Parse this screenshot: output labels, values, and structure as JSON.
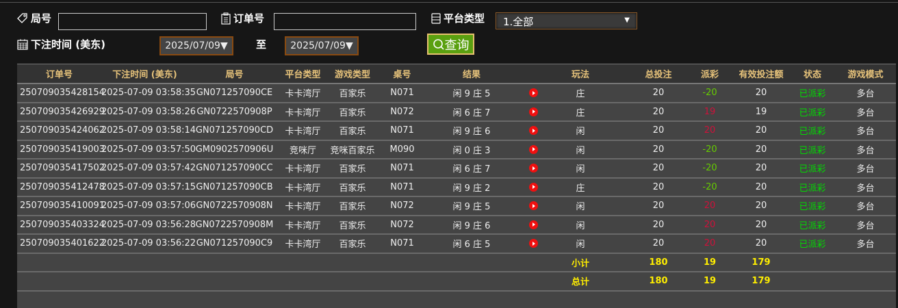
{
  "filters": {
    "round_label": "局号",
    "round_value": "",
    "order_label": "订单号",
    "order_value": "",
    "platform_label": "平台类型",
    "platform_value": "1.全部",
    "time_label": "下注时间 (美东)",
    "date_from": "2025/07/09▼",
    "to_label": "至",
    "date_to": "2025/07/09▼",
    "query_label": "查询"
  },
  "table": {
    "headers": [
      "订单号",
      "下注时间 (美东)",
      "局号",
      "平台类型",
      "游戏类型",
      "桌号",
      "结果",
      "",
      "玩法",
      "总投注",
      "派彩",
      "有效投注额",
      "状态",
      "游戏模式"
    ],
    "rows": [
      [
        "250709035428154",
        "2025-07-09 03:58:35",
        "GN071257090CE",
        "卡卡湾厅",
        "百家乐",
        "N071",
        "闲 9 庄 5",
        "",
        "庄",
        "20",
        "-20",
        "20",
        "已派彩",
        "多台"
      ],
      [
        "250709035426929",
        "2025-07-09 03:58:26",
        "GN0722570908P",
        "卡卡湾厅",
        "百家乐",
        "N072",
        "闲 6 庄 7",
        "",
        "庄",
        "20",
        "19",
        "19",
        "已派彩",
        "多台"
      ],
      [
        "250709035424062",
        "2025-07-09 03:58:14",
        "GN071257090CD",
        "卡卡湾厅",
        "百家乐",
        "N071",
        "闲 9 庄 6",
        "",
        "闲",
        "20",
        "20",
        "20",
        "已派彩",
        "多台"
      ],
      [
        "250709035419003",
        "2025-07-09 03:57:50",
        "GM0902570906U",
        "竞咪厅",
        "竞咪百家乐",
        "M090",
        "闲 0 庄 3",
        "",
        "闲",
        "20",
        "-20",
        "20",
        "已派彩",
        "多台"
      ],
      [
        "250709035417502",
        "2025-07-09 03:57:42",
        "GN071257090CC",
        "卡卡湾厅",
        "百家乐",
        "N071",
        "闲 6 庄 7",
        "",
        "闲",
        "20",
        "-20",
        "20",
        "已派彩",
        "多台"
      ],
      [
        "250709035412478",
        "2025-07-09 03:57:15",
        "GN071257090CB",
        "卡卡湾厅",
        "百家乐",
        "N071",
        "闲 9 庄 2",
        "",
        "庄",
        "20",
        "-20",
        "20",
        "已派彩",
        "多台"
      ],
      [
        "250709035410091",
        "2025-07-09 03:57:06",
        "GN0722570908N",
        "卡卡湾厅",
        "百家乐",
        "N072",
        "闲 9 庄 5",
        "",
        "闲",
        "20",
        "20",
        "20",
        "已派彩",
        "多台"
      ],
      [
        "250709035403324",
        "2025-07-09 03:56:28",
        "GN0722570908M",
        "卡卡湾厅",
        "百家乐",
        "N072",
        "闲 9 庄 6",
        "",
        "闲",
        "20",
        "20",
        "20",
        "已派彩",
        "多台"
      ],
      [
        "250709035401622",
        "2025-07-09 03:56:22",
        "GN071257090C9",
        "卡卡湾厅",
        "百家乐",
        "N071",
        "闲 6 庄 5",
        "",
        "闲",
        "20",
        "20",
        "20",
        "已派彩",
        "多台"
      ]
    ],
    "subtotal": {
      "label": "小计",
      "total_bet": "180",
      "payout": "19",
      "valid_bet": "179"
    },
    "total": {
      "label": "总计",
      "total_bet": "180",
      "payout": "19",
      "valid_bet": "179"
    }
  },
  "colors": {
    "header_text": "#e6c27a",
    "payout_positive": "#66cc00",
    "payout_negative": "#d0103a",
    "status": "#00dd00",
    "sum_text": "#ffee00",
    "query_button": "#5aa010"
  },
  "icons": {
    "round": "tag-icon",
    "order": "clipboard-icon",
    "platform": "list-icon",
    "time": "calendar-icon",
    "query": "search-icon",
    "replay": "video-play-icon"
  }
}
